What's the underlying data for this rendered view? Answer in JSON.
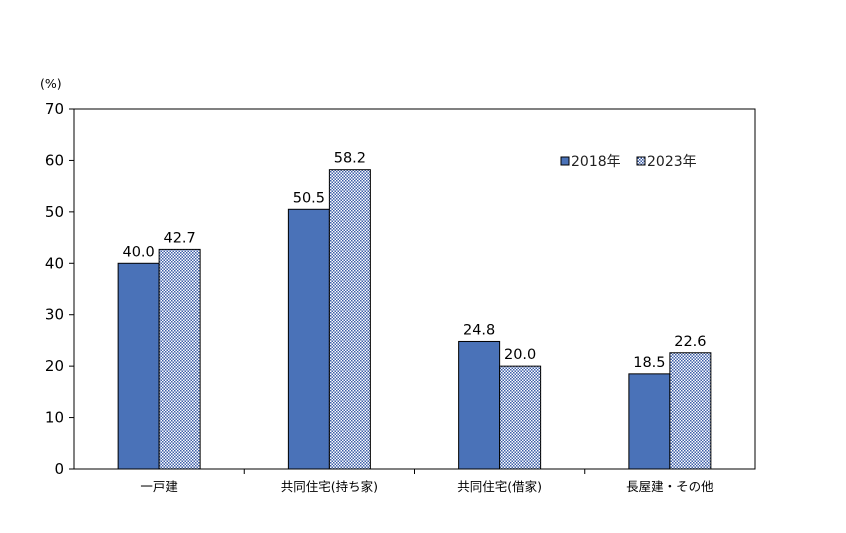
{
  "chart_data": {
    "type": "bar",
    "unit_label": "(%)",
    "categories": [
      "一戸建",
      "共同住宅(持ち家)",
      "共同住宅(借家)",
      "長屋建・その他"
    ],
    "series": [
      {
        "name": "2018年",
        "values": [
          40.0,
          50.5,
          24.8,
          18.5
        ],
        "labels": [
          "40.0",
          "50.5",
          "24.8",
          "18.5"
        ],
        "color": "#4a72b8"
      },
      {
        "name": "2023年",
        "values": [
          42.7,
          58.2,
          20.0,
          22.6
        ],
        "labels": [
          "42.7",
          "58.2",
          "20.0",
          "22.6"
        ],
        "color": "#3d5fa8"
      }
    ],
    "ylim": [
      0,
      70
    ],
    "yticks": [
      "0",
      "10",
      "20",
      "30",
      "40",
      "50",
      "60",
      "70"
    ],
    "legend_position": "top-right",
    "grid": false
  }
}
